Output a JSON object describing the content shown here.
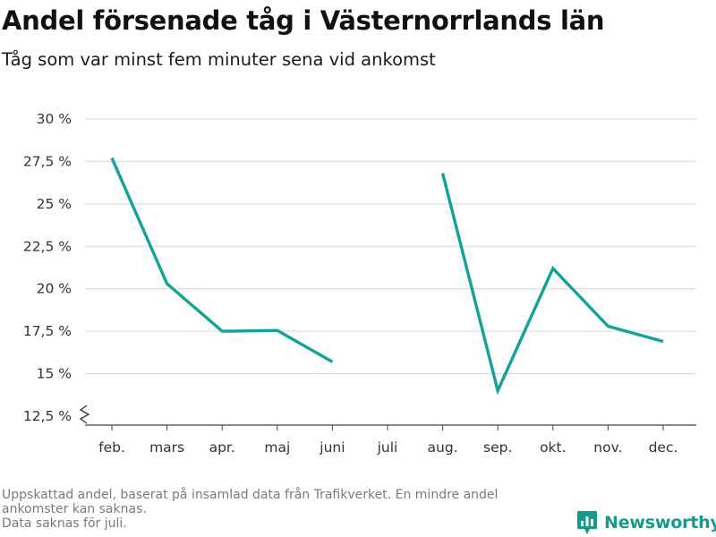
{
  "title": "Andel försenade tåg i Västernorrlands län",
  "subtitle": "Tåg som var minst fem minuter sena vid ankomst",
  "footer": {
    "note_line1": "Uppskattad andel, baserat på insamlad data från Trafikverket. En mindre andel",
    "note_line2": "ankomster kan saknas.",
    "note_line3": "Data saknas för juli."
  },
  "brand": {
    "name": "Newsworthy",
    "icon": "newsworthy-logo-icon",
    "color": "#159a8e"
  },
  "chart_data": {
    "type": "line",
    "title": "Andel försenade tåg i Västernorrlands län",
    "subtitle": "Tåg som var minst fem minuter sena vid ankomst",
    "xlabel": "",
    "ylabel": "",
    "categories": [
      "feb.",
      "mars",
      "apr.",
      "maj",
      "juni",
      "juli",
      "aug.",
      "sep.",
      "okt.",
      "nov.",
      "dec."
    ],
    "series": [
      {
        "color": "#13a297",
        "values": [
          27.7,
          20.3,
          17.5,
          17.55,
          15.7,
          null,
          26.8,
          14.0,
          21.2,
          17.8,
          16.9
        ]
      }
    ],
    "yticks": [
      12.5,
      15,
      17.5,
      20,
      22.5,
      25,
      27.5,
      30
    ],
    "ytick_labels": [
      "12,5 %",
      "15 %",
      "17,5 %",
      "20 %",
      "22,5 %",
      "25 %",
      "27,5 %",
      "30 %"
    ],
    "ylim": [
      12.5,
      30
    ],
    "grid": true,
    "axis_break": true
  }
}
